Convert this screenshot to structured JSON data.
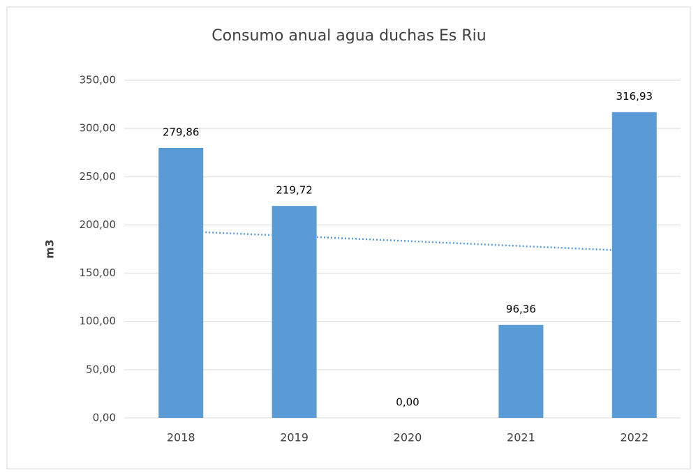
{
  "chart_data": {
    "type": "bar",
    "title": "Consumo anual agua duchas Es Riu",
    "y_label": "m3",
    "categories": [
      "2018",
      "2019",
      "2020",
      "2021",
      "2022"
    ],
    "values": [
      279.86,
      219.72,
      0,
      96.36,
      316.93
    ],
    "value_labels": [
      "279,86",
      "219,72",
      "0,00",
      "96,36",
      "316,93"
    ],
    "color": "#5b9bd5",
    "trendline": {
      "values": [
        193.5,
        188.4,
        183.3,
        178.1,
        173.0
      ],
      "color": "#5b9bd5",
      "style": "dotted"
    },
    "ylim": [
      0,
      350
    ],
    "yticks": [
      {
        "value": 0,
        "label": "0,00"
      },
      {
        "value": 50,
        "label": "50,00"
      },
      {
        "value": 100,
        "label": "100,00"
      },
      {
        "value": 150,
        "label": "150,00"
      },
      {
        "value": 200,
        "label": "200,00"
      },
      {
        "value": 250,
        "label": "250,00"
      },
      {
        "value": 300,
        "label": "300,00"
      },
      {
        "value": 350,
        "label": "350,00"
      }
    ],
    "grid": true
  }
}
